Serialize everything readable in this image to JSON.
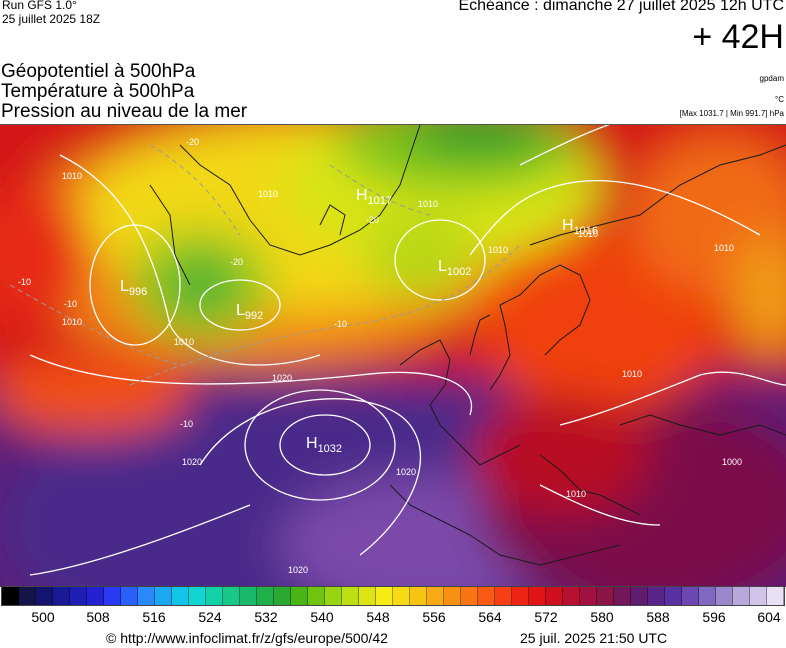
{
  "header": {
    "run_line1": "Run GFS 1.0°",
    "run_line2": "25 juillet 2025 18Z",
    "echeance": "Echéance : dimanche 27 juillet 2025 12h UTC",
    "lead": "+ 42H"
  },
  "titles": {
    "line1": "Géopotentiel à 500hPa",
    "line2": "Température à 500hPa",
    "line3": "Pression au niveau de la mer"
  },
  "units": {
    "geopot": "gpdam",
    "temp": "°C",
    "pressure": "[Max 1031.7 | Min 991.7] hPa"
  },
  "map": {
    "pressure_centers": [
      {
        "type": "H",
        "value": "1032"
      },
      {
        "type": "H",
        "value": "1017"
      },
      {
        "type": "H",
        "value": "1016"
      },
      {
        "type": "L",
        "value": "996"
      },
      {
        "type": "L",
        "value": "992"
      },
      {
        "type": "L",
        "value": "1002"
      }
    ],
    "isobar_labels": [
      "1010",
      "1010",
      "1010",
      "1010",
      "1010",
      "1010",
      "1020",
      "1020",
      "1020",
      "1010",
      "1010",
      "1000",
      "1010",
      "1020",
      "1010"
    ],
    "isotherm_labels": [
      "-20",
      "-20",
      "-20",
      "-10",
      "-10",
      "-10",
      "-10"
    ]
  },
  "colorbar": {
    "colors": [
      "#000000",
      "#141448",
      "#14146e",
      "#1a1a96",
      "#1e1eb4",
      "#2222d2",
      "#2a3af0",
      "#2a60f8",
      "#2a88f8",
      "#1aa8f0",
      "#12c4e8",
      "#12d4d0",
      "#14d0a8",
      "#18c888",
      "#1ab86a",
      "#20b04a",
      "#2aa830",
      "#4ab414",
      "#70c410",
      "#98d410",
      "#bcde12",
      "#dce414",
      "#f4ec14",
      "#f8da14",
      "#f8c414",
      "#f8aa14",
      "#f89014",
      "#f87414",
      "#f85a14",
      "#f44014",
      "#ec2414",
      "#e01414",
      "#cc1020",
      "#b81030",
      "#a01040",
      "#881448",
      "#701858",
      "#601c70",
      "#582488",
      "#5830a0",
      "#6a48b0",
      "#8068c0",
      "#9a88cc",
      "#b8a8dc",
      "#d0c4e8",
      "#e8e0f4"
    ],
    "ticks": [
      "500",
      "508",
      "516",
      "524",
      "532",
      "540",
      "548",
      "556",
      "564",
      "572",
      "580",
      "588",
      "596",
      "604"
    ]
  },
  "footer": {
    "url": "© http://www.infoclimat.fr/z/gfs/europe/500/42",
    "timestamp": "25 juil. 2025 21:50 UTC"
  }
}
